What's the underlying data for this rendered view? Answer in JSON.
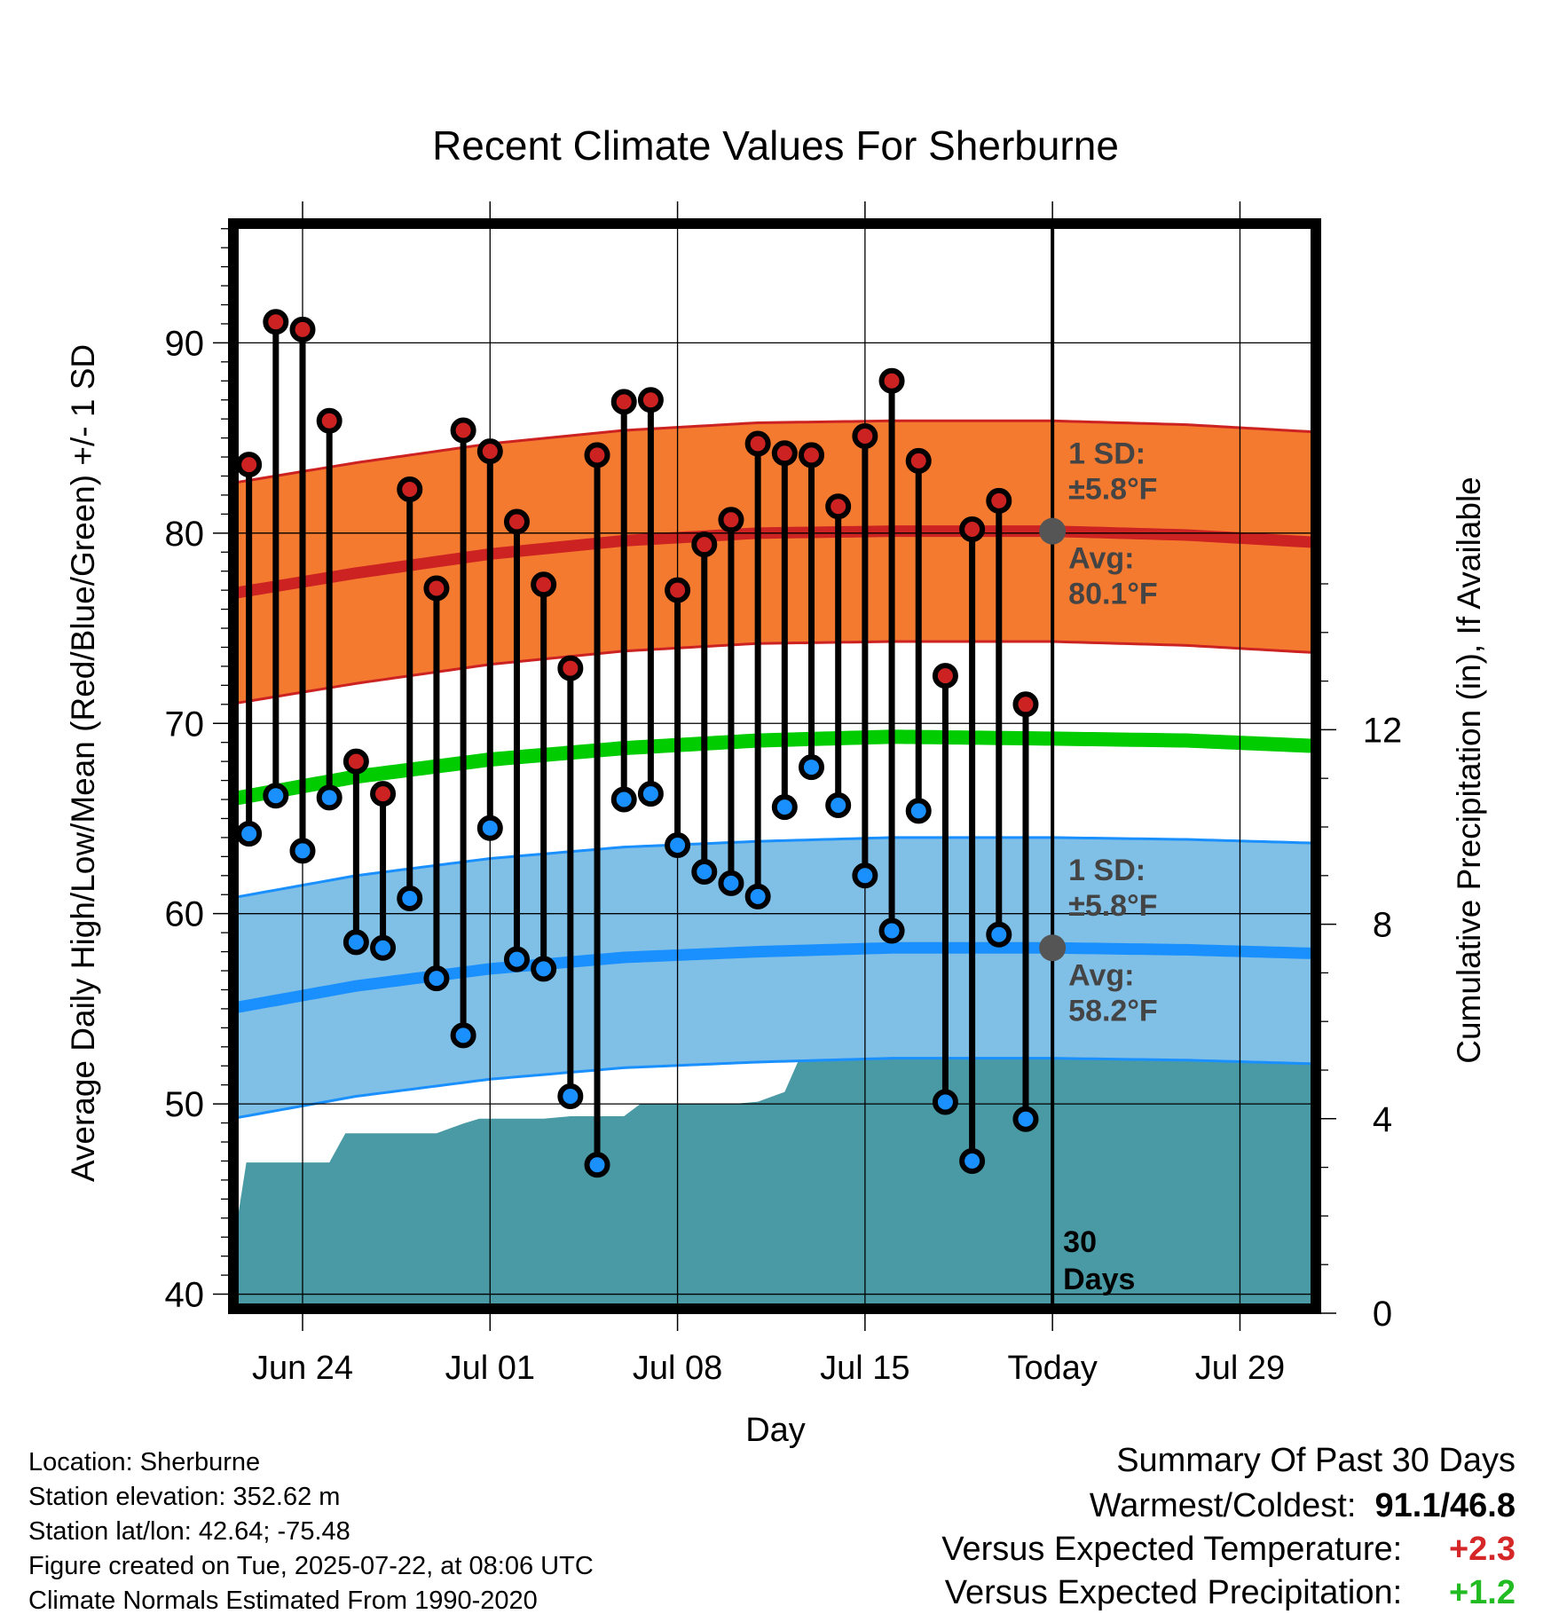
{
  "chart_data": {
    "type": "line",
    "title": "Recent Climate Values For Sherburne",
    "xlabel": "Day",
    "ylabel_left": "Average Daily High/Low/Mean (Red/Blue/Green) +/- 1 SD",
    "ylabel_right": "Cumulative Precipitation (in), If Available",
    "ylim_left": [
      39,
      96.5
    ],
    "ylim_right": [
      0,
      22.5
    ],
    "x_ticks": [
      {
        "label": "Jun 24",
        "day": 2
      },
      {
        "label": "Jul 01",
        "day": 9
      },
      {
        "label": "Jul 08",
        "day": 16
      },
      {
        "label": "Jul 15",
        "day": 23
      },
      {
        "label": "Today",
        "day": 30
      },
      {
        "label": "Jul 29",
        "day": 37
      }
    ],
    "x_range": [
      -0.75,
      40
    ],
    "y_ticks_left": [
      40,
      50,
      60,
      70,
      80,
      90
    ],
    "y_ticks_right": [
      0,
      4,
      8,
      12
    ],
    "today_day": 30,
    "today_label_line1": "30",
    "today_label_line2": "Days",
    "normal_high": {
      "days": [
        -0.75,
        4,
        9,
        14,
        19,
        24,
        30,
        35,
        40
      ],
      "mean": [
        76.8,
        77.9,
        78.9,
        79.6,
        80.0,
        80.1,
        80.1,
        79.9,
        79.5
      ],
      "sd": 5.8
    },
    "normal_low": {
      "days": [
        -0.75,
        4,
        9,
        14,
        19,
        24,
        30,
        35,
        40
      ],
      "mean": [
        55.0,
        56.2,
        57.1,
        57.7,
        58.0,
        58.2,
        58.2,
        58.1,
        57.9
      ],
      "sd": 5.8
    },
    "normal_mean": {
      "days": [
        -0.75,
        4,
        9,
        14,
        19,
        24,
        30,
        35,
        40
      ],
      "values": [
        66.0,
        67.2,
        68.1,
        68.7,
        69.1,
        69.3,
        69.2,
        69.1,
        68.8
      ]
    },
    "daily": [
      {
        "day": 0,
        "high": 83.6,
        "low": 64.2
      },
      {
        "day": 1,
        "high": 91.1,
        "low": 66.2
      },
      {
        "day": 2,
        "high": 90.7,
        "low": 63.3
      },
      {
        "day": 3,
        "high": 85.9,
        "low": 66.1
      },
      {
        "day": 4,
        "high": 68.0,
        "low": 58.5
      },
      {
        "day": 5,
        "high": 66.3,
        "low": 58.2
      },
      {
        "day": 6,
        "high": 82.3,
        "low": 60.8
      },
      {
        "day": 7,
        "high": 77.1,
        "low": 56.6
      },
      {
        "day": 8,
        "high": 85.4,
        "low": 53.6
      },
      {
        "day": 9,
        "high": 84.3,
        "low": 64.5
      },
      {
        "day": 10,
        "high": 80.6,
        "low": 57.6
      },
      {
        "day": 11,
        "high": 77.3,
        "low": 57.1
      },
      {
        "day": 12,
        "high": 72.9,
        "low": 50.4
      },
      {
        "day": 13,
        "high": 84.1,
        "low": 46.8
      },
      {
        "day": 14,
        "high": 86.9,
        "low": 66.0
      },
      {
        "day": 15,
        "high": 87.0,
        "low": 66.3
      },
      {
        "day": 16,
        "high": 77.0,
        "low": 63.6
      },
      {
        "day": 17,
        "high": 79.4,
        "low": 62.2
      },
      {
        "day": 18,
        "high": 80.7,
        "low": 61.6
      },
      {
        "day": 19,
        "high": 84.7,
        "low": 60.9
      },
      {
        "day": 20,
        "high": 84.2,
        "low": 65.6
      },
      {
        "day": 21,
        "high": 84.1,
        "low": 67.7
      },
      {
        "day": 22,
        "high": 81.4,
        "low": 65.7
      },
      {
        "day": 23,
        "high": 85.1,
        "low": 62.0
      },
      {
        "day": 24,
        "high": 88.0,
        "low": 59.1
      },
      {
        "day": 25,
        "high": 83.8,
        "low": 65.4
      },
      {
        "day": 26,
        "high": 72.5,
        "low": 50.1
      },
      {
        "day": 27,
        "high": 80.2,
        "low": 47.0
      },
      {
        "day": 28,
        "high": 81.7,
        "low": 58.9
      },
      {
        "day": 29,
        "high": 71.0,
        "low": 49.2
      }
    ],
    "precip_cumulative": {
      "days": [
        -0.75,
        -0.1,
        0.6,
        1,
        2,
        3,
        3.6,
        4,
        5,
        6,
        7,
        8,
        8.6,
        9,
        10,
        11,
        12,
        13,
        14,
        14.6,
        15,
        16,
        17,
        18,
        19,
        20,
        20.6,
        21,
        22,
        23,
        24,
        25,
        26,
        27,
        28,
        28.6,
        29,
        30,
        35,
        40
      ],
      "values": [
        0.8,
        3.1,
        3.1,
        3.1,
        3.1,
        3.1,
        3.7,
        3.7,
        3.7,
        3.7,
        3.7,
        3.9,
        4.0,
        4.0,
        4.0,
        4.0,
        4.05,
        4.05,
        4.05,
        4.3,
        4.3,
        4.3,
        4.3,
        4.3,
        4.35,
        4.55,
        5.3,
        5.3,
        5.3,
        5.3,
        5.3,
        5.3,
        5.3,
        5.3,
        5.3,
        5.45,
        5.45,
        5.45,
        5.45,
        5.45
      ]
    },
    "annotations": {
      "high_sd_line1": "1 SD:",
      "high_sd_line2": "±5.8°F",
      "high_avg_line1": "Avg:",
      "high_avg_line2": "80.1°F",
      "low_sd_line1": "1 SD:",
      "low_sd_line2": "±5.8°F",
      "low_avg_line1": "Avg:",
      "low_avg_line2": "58.2°F"
    },
    "colors": {
      "high_band": "#f47a30",
      "high_line": "#cc2222",
      "low_band": "#80bfe6",
      "low_line": "#1a90ff",
      "mean_line": "#00cc00",
      "precip": "#4a9aa5",
      "high_dot": "#cc2222",
      "low_dot": "#1a90ff",
      "avg_marker": "#555555"
    }
  },
  "info": {
    "location": "Location: Sherburne",
    "elevation": "Station elevation: 352.62 m",
    "latlon": "Station lat/lon: 42.64; -75.48",
    "created": "Figure created on Tue, 2025-07-22, at 08:06 UTC",
    "normals": "Climate Normals Estimated From 1990-2020"
  },
  "summary": {
    "title": "Summary Of Past 30 Days",
    "warm_cold_label": "Warmest/Coldest:",
    "warm_cold_value": "91.1/46.8",
    "temp_label": "Versus Expected Temperature:",
    "temp_value": "+2.3",
    "temp_color": "#d62728",
    "precip_label": "Versus Expected Precipitation:",
    "precip_value": "+1.2",
    "precip_color": "#22bb22"
  }
}
